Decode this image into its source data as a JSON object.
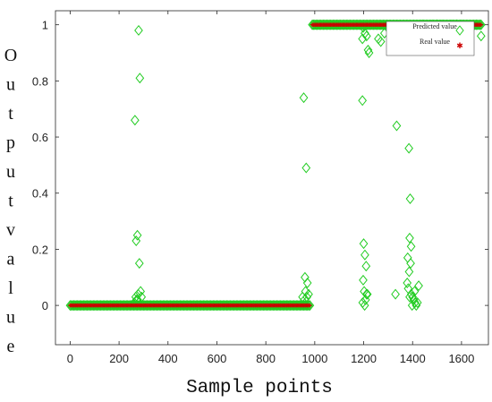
{
  "chart_data": {
    "type": "scatter",
    "title": "",
    "xlabel": "Sample points",
    "ylabel": "Outputvalue",
    "xlim": [
      -60,
      1710
    ],
    "ylim": [
      -0.14,
      1.05
    ],
    "xticks": [
      0,
      200,
      400,
      600,
      800,
      1000,
      1200,
      1400,
      1600
    ],
    "yticks": [
      0,
      0.2,
      0.4,
      0.6,
      0.8,
      1
    ],
    "ytick_labels": [
      "0",
      "0.2",
      "0.4",
      "0.6",
      "0.8",
      "1"
    ],
    "grid": false,
    "legend_position": "top-right",
    "series": [
      {
        "name": "Predicted\nvalue",
        "marker": "diamond",
        "color": "#22cc22",
        "segments": [
          {
            "x_start": 0,
            "x_end": 980,
            "step": 5,
            "y": 0
          },
          {
            "x_start": 990,
            "x_end": 1680,
            "step": 5,
            "y": 1
          }
        ],
        "points": [
          [
            265,
            0.66
          ],
          [
            270,
            0.23
          ],
          [
            275,
            0.25
          ],
          [
            280,
            0.98
          ],
          [
            285,
            0.81
          ],
          [
            283,
            0.15
          ],
          [
            262,
            0.01
          ],
          [
            268,
            0.03
          ],
          [
            272,
            0.02
          ],
          [
            278,
            0.04
          ],
          [
            288,
            0.05
          ],
          [
            292,
            0.03
          ],
          [
            276,
            0.02
          ],
          [
            955,
            0.74
          ],
          [
            960,
            0.1
          ],
          [
            965,
            0.49
          ],
          [
            950,
            0.03
          ],
          [
            958,
            0.02
          ],
          [
            962,
            0.05
          ],
          [
            970,
            0.08
          ],
          [
            975,
            0.04
          ],
          [
            968,
            0.03
          ],
          [
            1195,
            0.73
          ],
          [
            1200,
            0.22
          ],
          [
            1205,
            0.18
          ],
          [
            1210,
            0.14
          ],
          [
            1198,
            0.09
          ],
          [
            1202,
            0.05
          ],
          [
            1208,
            0.02
          ],
          [
            1212,
            0.04
          ],
          [
            1196,
            0.01
          ],
          [
            1204,
            0.0
          ],
          [
            1215,
            0.04
          ],
          [
            1198,
            0.99
          ],
          [
            1205,
            0.97
          ],
          [
            1212,
            0.96
          ],
          [
            1218,
            0.91
          ],
          [
            1222,
            0.9
          ],
          [
            1195,
            0.95
          ],
          [
            1260,
            0.95
          ],
          [
            1270,
            0.94
          ],
          [
            1285,
            0.97
          ],
          [
            1335,
            0.64
          ],
          [
            1330,
            0.04
          ],
          [
            1385,
            0.56
          ],
          [
            1390,
            0.38
          ],
          [
            1388,
            0.24
          ],
          [
            1394,
            0.21
          ],
          [
            1380,
            0.17
          ],
          [
            1392,
            0.15
          ],
          [
            1386,
            0.12
          ],
          [
            1378,
            0.08
          ],
          [
            1382,
            0.06
          ],
          [
            1395,
            0.04
          ],
          [
            1400,
            0.03
          ],
          [
            1405,
            0.02
          ],
          [
            1410,
            0.01
          ],
          [
            1415,
            0.0
          ],
          [
            1420,
            0.01
          ],
          [
            1425,
            0.07
          ],
          [
            1388,
            0.03
          ],
          [
            1398,
            0.0
          ],
          [
            1408,
            0.05
          ],
          [
            1420,
            0.99
          ],
          [
            1440,
            1.0
          ],
          [
            1460,
            0.99
          ],
          [
            1480,
            1.0
          ],
          [
            1500,
            1.0
          ],
          [
            1520,
            1.0
          ],
          [
            1540,
            0.99
          ],
          [
            1560,
            1.0
          ],
          [
            1580,
            1.0
          ],
          [
            1600,
            1.0
          ],
          [
            1620,
            0.99
          ],
          [
            1640,
            0.99
          ],
          [
            1660,
            1.0
          ],
          [
            1680,
            0.96
          ]
        ]
      },
      {
        "name": "Real\nvalue",
        "marker": "star",
        "color": "#cc0000",
        "segments": [
          {
            "x_start": 0,
            "x_end": 980,
            "step": 5,
            "y": 0
          },
          {
            "x_start": 990,
            "x_end": 1680,
            "step": 5,
            "y": 1
          }
        ]
      }
    ]
  },
  "colors": {
    "predicted": "#22cc22",
    "real": "#cc0000",
    "axis": "#262626"
  }
}
